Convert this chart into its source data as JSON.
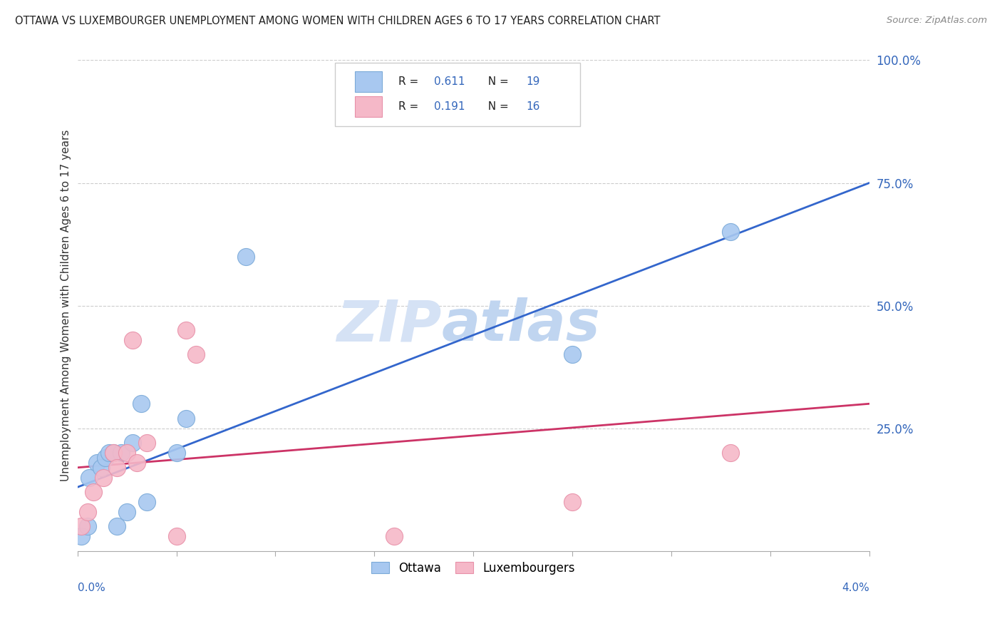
{
  "title": "OTTAWA VS LUXEMBOURGER UNEMPLOYMENT AMONG WOMEN WITH CHILDREN AGES 6 TO 17 YEARS CORRELATION CHART",
  "source": "Source: ZipAtlas.com",
  "ylabel": "Unemployment Among Women with Children Ages 6 to 17 years",
  "xlim": [
    0.0,
    4.0
  ],
  "ylim": [
    0.0,
    100.0
  ],
  "yticks": [
    25.0,
    50.0,
    75.0,
    100.0
  ],
  "ytick_labels": [
    "25.0%",
    "50.0%",
    "75.0%",
    "100.0%"
  ],
  "ottawa_x": [
    0.02,
    0.05,
    0.06,
    0.1,
    0.12,
    0.14,
    0.16,
    0.18,
    0.2,
    0.22,
    0.25,
    0.28,
    0.32,
    0.35,
    0.5,
    0.55,
    0.85,
    2.5,
    3.3
  ],
  "ottawa_y": [
    3,
    5,
    15,
    18,
    17,
    19,
    20,
    20,
    5,
    20,
    8,
    22,
    30,
    10,
    20,
    27,
    60,
    40,
    65
  ],
  "lux_x": [
    0.02,
    0.05,
    0.08,
    0.13,
    0.18,
    0.2,
    0.25,
    0.28,
    0.3,
    0.35,
    0.5,
    0.55,
    0.6,
    1.6,
    2.5,
    3.3
  ],
  "lux_y": [
    5,
    8,
    12,
    15,
    20,
    17,
    20,
    43,
    18,
    22,
    3,
    45,
    40,
    3,
    10,
    20
  ],
  "ottawa_color": "#a8c8f0",
  "ottawa_edge_color": "#7baad8",
  "lux_color": "#f5b8c8",
  "lux_edge_color": "#e890a8",
  "ottawa_line_color": "#3366cc",
  "lux_line_color": "#cc3366",
  "background_color": "#ffffff",
  "watermark_zip": "ZIP",
  "watermark_atlas": "atlas",
  "watermark_color_zip": "#d0ddf5",
  "watermark_color_atlas": "#c8daf0",
  "legend_r1": "R = 0.611",
  "legend_n1": "N = 19",
  "legend_r2": "R = 0.191",
  "legend_n2": "N = 16",
  "legend_text_color": "#3366bb",
  "legend_label_color": "#222222"
}
